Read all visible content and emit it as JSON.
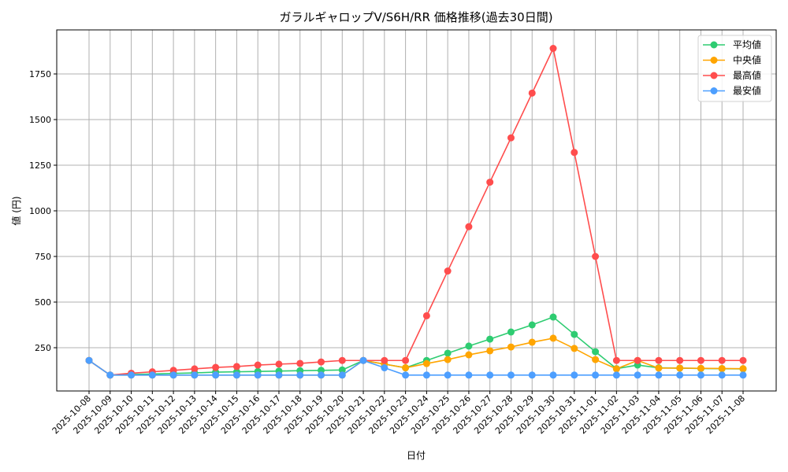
{
  "chart_data": {
    "type": "line",
    "title": "ガラルギャロップV/S6H/RR 価格推移(過去30日間)",
    "xlabel": "日付",
    "ylabel": "値 (円)",
    "ylim": [
      0,
      1960
    ],
    "yticks": [
      250,
      500,
      750,
      1000,
      1250,
      1500,
      1750
    ],
    "grid": true,
    "legend_position": "upper right",
    "x": [
      "2025-10-08",
      "2025-10-09",
      "2025-10-10",
      "2025-10-11",
      "2025-10-12",
      "2025-10-13",
      "2025-10-14",
      "2025-10-15",
      "2025-10-16",
      "2025-10-17",
      "2025-10-18",
      "2025-10-19",
      "2025-10-20",
      "2025-10-21",
      "2025-10-22",
      "2025-10-23",
      "2025-10-24",
      "2025-10-25",
      "2025-10-26",
      "2025-10-27",
      "2025-10-28",
      "2025-10-29",
      "2025-10-30",
      "2025-10-31",
      "2025-11-01",
      "2025-11-02",
      "2025-11-03",
      "2025-11-04",
      "2025-11-05",
      "2025-11-06",
      "2025-11-07",
      "2025-11-08"
    ],
    "series": [
      {
        "name": "平均値",
        "color": "#2ecc71",
        "values": [
          180,
          100,
          103,
          106,
          109,
          112,
          116,
          118,
          120,
          122,
          124,
          126,
          128,
          180,
          160,
          140,
          180,
          220,
          259,
          297,
          336,
          375,
          418,
          323,
          228,
          135,
          155,
          140,
          138,
          136,
          135,
          134
        ]
      },
      {
        "name": "中央値",
        "color": "#ffa500",
        "values": [
          180,
          100,
          100,
          100,
          100,
          100,
          100,
          100,
          100,
          100,
          100,
          100,
          100,
          180,
          160,
          140,
          163,
          185,
          211,
          233,
          254,
          280,
          302,
          246,
          185,
          134,
          180,
          138,
          138,
          137,
          136,
          135
        ]
      },
      {
        "name": "最高値",
        "color": "#ff4d4d",
        "values": [
          180,
          100,
          110,
          118,
          126,
          134,
          142,
          147,
          155,
          160,
          164,
          172,
          180,
          180,
          180,
          180,
          425,
          670,
          913,
          1157,
          1400,
          1645,
          1890,
          1320,
          750,
          180,
          180,
          180,
          180,
          180,
          180,
          180
        ]
      },
      {
        "name": "最安値",
        "color": "#4d9fff",
        "values": [
          180,
          100,
          100,
          100,
          100,
          100,
          100,
          100,
          100,
          100,
          100,
          100,
          100,
          180,
          140,
          100,
          100,
          100,
          100,
          100,
          100,
          100,
          100,
          100,
          100,
          100,
          100,
          100,
          100,
          100,
          100,
          100
        ]
      }
    ]
  }
}
